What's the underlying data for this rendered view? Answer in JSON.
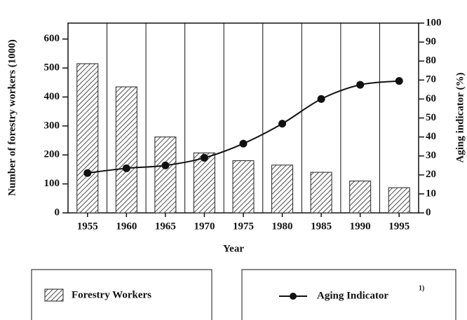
{
  "chart_data": {
    "type": "bar_line",
    "x_label": "Year",
    "y_label": "Number of forestry workers (1000)",
    "y2_label": "Aging indicator (%)",
    "categories": [
      "1955",
      "1960",
      "1965",
      "1970",
      "1975",
      "1980",
      "1985",
      "1990",
      "1995"
    ],
    "series": [
      {
        "name": "Forestry Workers",
        "type": "bar",
        "color": "#222222",
        "values": [
          515,
          435,
          262,
          207,
          180,
          165,
          140,
          110,
          87
        ]
      },
      {
        "name": "Aging Indicator",
        "type": "line",
        "axis": "y2",
        "color": "#111111",
        "note": "1)",
        "values": [
          21,
          23.5,
          25,
          29,
          36.5,
          47,
          60,
          67.5,
          69.5
        ]
      }
    ],
    "ylim": [
      0,
      655
    ],
    "yticks": [
      0,
      100,
      200,
      300,
      400,
      500,
      600
    ],
    "y2lim": [
      0,
      100
    ],
    "y2ticks": [
      0,
      10,
      20,
      30,
      40,
      50,
      60,
      70,
      80,
      90,
      100
    ]
  }
}
